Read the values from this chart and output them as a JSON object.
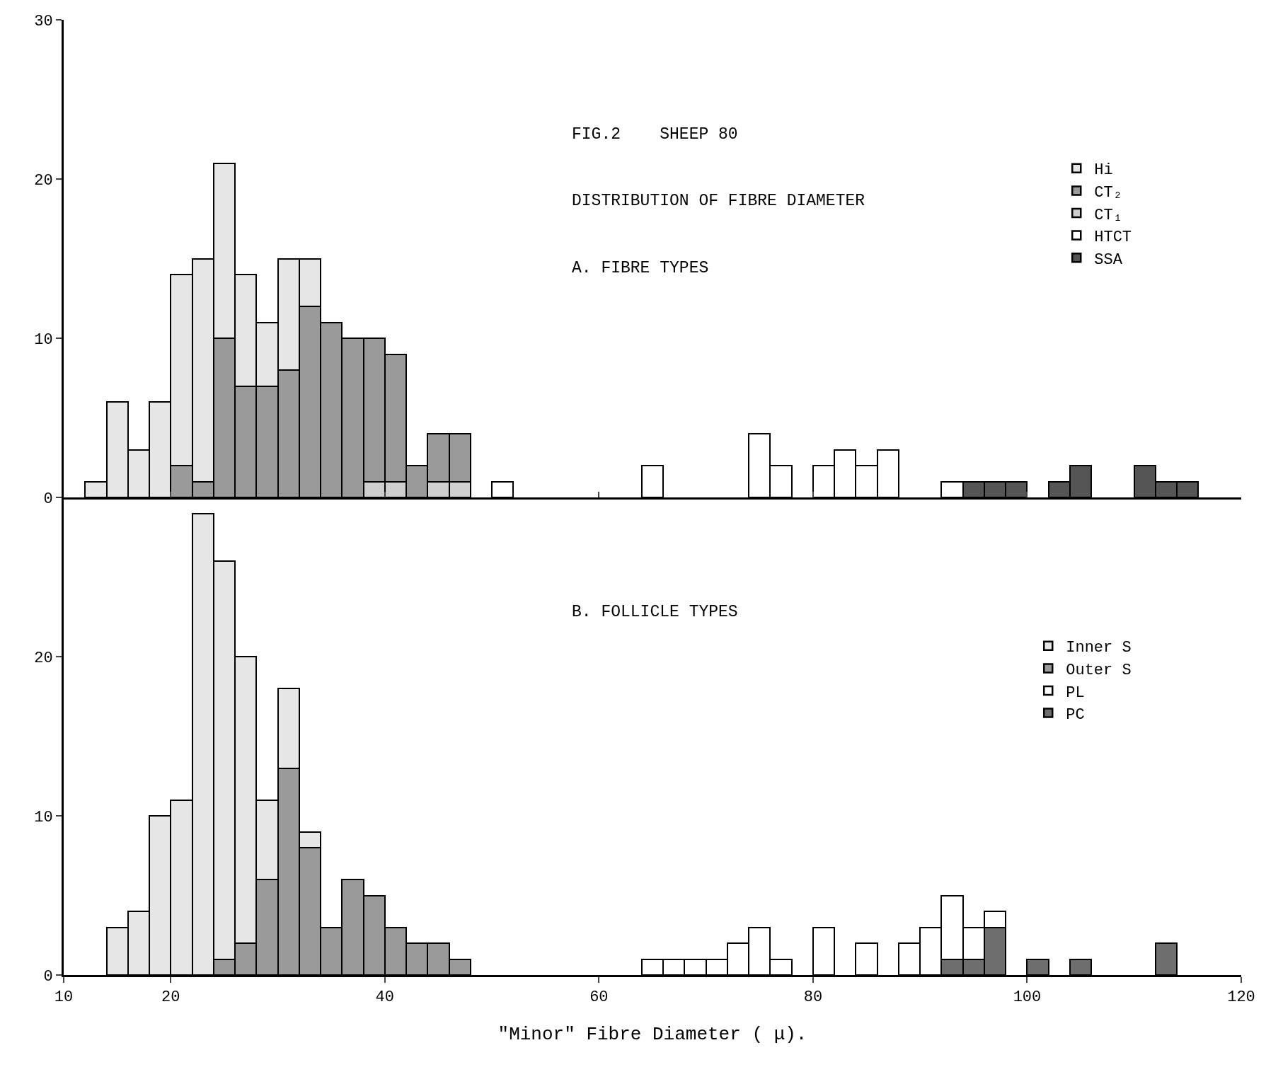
{
  "chart_data": [
    {
      "type": "bar",
      "title": "FIG.2    SHEEP 80",
      "subtitle": "DISTRIBUTION OF FIBRE DIAMETER",
      "annotations": [
        "A. FIBRE TYPES"
      ],
      "x": [
        13,
        15,
        17,
        19,
        21,
        23,
        25,
        27,
        29,
        31,
        33,
        35,
        37,
        39,
        41,
        43,
        45,
        47,
        49,
        51,
        53,
        55,
        57,
        59,
        61,
        63,
        65,
        67,
        69,
        71,
        73,
        75,
        77,
        79,
        81,
        83,
        85,
        87,
        89,
        91,
        93,
        95,
        97,
        99,
        101,
        103,
        105,
        107,
        109,
        111,
        113,
        115
      ],
      "stacked": true,
      "legend": "top right",
      "tick_labels": "y",
      "xlim": [
        10,
        120
      ],
      "xticks": [
        10,
        20,
        40,
        60,
        80,
        100,
        120
      ],
      "ylim": [
        0,
        30
      ],
      "yticks": [
        0,
        10,
        20,
        30
      ],
      "series": [
        {
          "name": "SSA",
          "color": "#555555",
          "values": [
            0,
            0,
            0,
            0,
            0,
            0,
            0,
            0,
            0,
            0,
            0,
            0,
            0,
            0,
            0,
            0,
            0,
            0,
            0,
            0,
            0,
            0,
            0,
            0,
            0,
            0,
            0,
            0,
            0,
            0,
            0,
            0,
            0,
            0,
            0,
            0,
            0,
            0,
            0,
            0,
            0,
            1,
            1,
            1,
            0,
            1,
            2,
            0,
            0,
            2,
            1,
            1
          ]
        },
        {
          "name": "HTCT",
          "color": "#ffffff",
          "values": [
            0,
            0,
            0,
            0,
            0,
            0,
            0,
            0,
            0,
            0,
            0,
            0,
            0,
            0,
            0,
            0,
            0,
            0,
            0,
            1,
            0,
            0,
            0,
            0,
            0,
            0,
            2,
            0,
            0,
            0,
            0,
            4,
            2,
            0,
            2,
            3,
            2,
            3,
            0,
            0,
            1,
            0,
            0,
            0,
            0,
            0,
            0,
            0,
            0,
            0,
            0,
            0
          ]
        },
        {
          "name": "CT₁",
          "color": "#cfcfcf",
          "values": [
            0,
            0,
            0,
            0,
            0,
            0,
            0,
            0,
            0,
            0,
            0,
            0,
            0,
            1,
            1,
            0,
            1,
            1,
            0,
            0,
            0,
            0,
            0,
            0,
            0,
            0,
            0,
            0,
            0,
            0,
            0,
            0,
            0,
            0,
            0,
            0,
            0,
            0,
            0,
            0,
            0,
            0,
            0,
            0,
            0,
            0,
            0,
            0,
            0,
            0,
            0,
            0
          ]
        },
        {
          "name": "CT₂",
          "color": "#9a9a9a",
          "values": [
            0,
            0,
            0,
            0,
            2,
            1,
            10,
            7,
            7,
            8,
            12,
            11,
            10,
            9,
            8,
            2,
            3,
            3,
            0,
            0,
            0,
            0,
            0,
            0,
            0,
            0,
            0,
            0,
            0,
            0,
            0,
            0,
            0,
            0,
            0,
            0,
            0,
            0,
            0,
            0,
            0,
            0,
            0,
            0,
            0,
            0,
            0,
            0,
            0,
            0,
            0,
            0
          ]
        },
        {
          "name": "Hi",
          "color": "#e6e6e6",
          "values": [
            1,
            6,
            3,
            6,
            12,
            14,
            11,
            7,
            4,
            7,
            3,
            0,
            0,
            0,
            0,
            0,
            0,
            0,
            0,
            0,
            0,
            0,
            0,
            0,
            0,
            0,
            0,
            0,
            0,
            0,
            0,
            0,
            0,
            0,
            0,
            0,
            0,
            0,
            0,
            0,
            0,
            0,
            0,
            0,
            0,
            0,
            0,
            0,
            0,
            0,
            0,
            0
          ]
        }
      ]
    },
    {
      "type": "bar",
      "title": "B. FOLLICLE TYPES",
      "xlabel": "\"Minor\" Fibre Diameter ( μ).",
      "x": [
        13,
        15,
        17,
        19,
        21,
        23,
        25,
        27,
        29,
        31,
        33,
        35,
        37,
        39,
        41,
        43,
        45,
        47,
        49,
        51,
        53,
        55,
        57,
        59,
        61,
        63,
        65,
        67,
        69,
        71,
        73,
        75,
        77,
        79,
        81,
        83,
        85,
        87,
        89,
        91,
        93,
        95,
        97,
        99,
        101,
        103,
        105,
        107,
        109,
        111,
        113,
        115
      ],
      "stacked": true,
      "legend": "top right",
      "xlim": [
        10,
        120
      ],
      "xticks": [
        10,
        20,
        40,
        60,
        80,
        100,
        120
      ],
      "ylim": [
        0,
        30
      ],
      "yticks": [
        0,
        10,
        20
      ],
      "series": [
        {
          "name": "PC",
          "color": "#6e6e6e",
          "values": [
            0,
            0,
            0,
            0,
            0,
            0,
            0,
            0,
            0,
            0,
            0,
            0,
            0,
            0,
            0,
            0,
            0,
            0,
            0,
            0,
            0,
            0,
            0,
            0,
            0,
            0,
            0,
            0,
            0,
            0,
            0,
            0,
            0,
            0,
            0,
            0,
            0,
            0,
            0,
            0,
            1,
            1,
            3,
            0,
            1,
            0,
            1,
            0,
            0,
            0,
            2,
            0
          ]
        },
        {
          "name": "PL",
          "color": "#ffffff",
          "values": [
            0,
            0,
            0,
            0,
            0,
            0,
            0,
            0,
            0,
            0,
            0,
            0,
            0,
            0,
            0,
            0,
            0,
            0,
            0,
            0,
            0,
            0,
            0,
            0,
            0,
            0,
            1,
            1,
            1,
            1,
            2,
            3,
            1,
            0,
            3,
            0,
            2,
            0,
            2,
            3,
            4,
            2,
            1,
            0,
            0,
            0,
            0,
            0,
            0,
            0,
            0,
            0
          ]
        },
        {
          "name": "Outer S",
          "color": "#9a9a9a",
          "values": [
            0,
            0,
            0,
            0,
            0,
            0,
            1,
            2,
            6,
            13,
            8,
            3,
            6,
            5,
            3,
            2,
            2,
            1,
            0,
            0,
            0,
            0,
            0,
            0,
            0,
            0,
            0,
            0,
            0,
            0,
            0,
            0,
            0,
            0,
            0,
            0,
            0,
            0,
            0,
            0,
            0,
            0,
            0,
            0,
            0,
            0,
            0,
            0,
            0,
            0,
            0,
            0
          ]
        },
        {
          "name": "Inner S",
          "color": "#e6e6e6",
          "values": [
            0,
            3,
            4,
            10,
            11,
            29,
            25,
            18,
            5,
            5,
            1,
            0,
            0,
            0,
            0,
            0,
            0,
            0,
            0,
            0,
            0,
            0,
            0,
            0,
            0,
            0,
            0,
            0,
            0,
            0,
            0,
            0,
            0,
            0,
            0,
            0,
            0,
            0,
            0,
            0,
            0,
            0,
            0,
            0,
            0,
            0,
            0,
            0,
            0,
            0,
            0,
            0
          ]
        }
      ]
    }
  ]
}
